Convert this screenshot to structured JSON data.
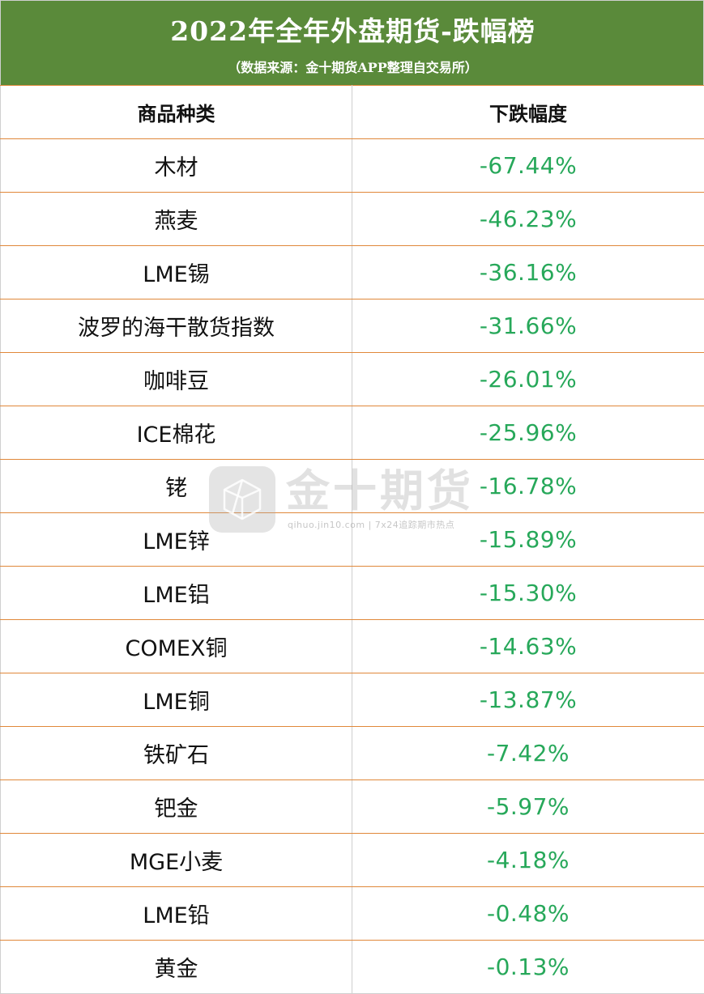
{
  "header": {
    "title": "2022年全年外盘期货-跌幅榜",
    "subtitle": "（数据来源：金十期货APP整理自交易所）",
    "bg_color": "#5a8a3a"
  },
  "table": {
    "columns": [
      "商品种类",
      "下跌幅度"
    ],
    "rows": [
      {
        "name": "木材",
        "change": "-67.44%"
      },
      {
        "name": "燕麦",
        "change": "-46.23%"
      },
      {
        "name": "LME锡",
        "change": "-36.16%"
      },
      {
        "name": "波罗的海干散货指数",
        "change": "-31.66%"
      },
      {
        "name": "咖啡豆",
        "change": "-26.01%"
      },
      {
        "name": "ICE棉花",
        "change": "-25.96%"
      },
      {
        "name": "铑",
        "change": "-16.78%"
      },
      {
        "name": "LME锌",
        "change": "-15.89%"
      },
      {
        "name": "LME铝",
        "change": "-15.30%"
      },
      {
        "name": "COMEX铜",
        "change": "-14.63%"
      },
      {
        "name": "LME铜",
        "change": "-13.87%"
      },
      {
        "name": "铁矿石",
        "change": "-7.42%"
      },
      {
        "name": "钯金",
        "change": "-5.97%"
      },
      {
        "name": "MGE小麦",
        "change": "-4.18%"
      },
      {
        "name": "LME铅",
        "change": "-0.48%"
      },
      {
        "name": "黄金",
        "change": "-0.13%"
      }
    ],
    "change_color": "#27a85a",
    "row_border_color": "#e0883a"
  },
  "watermark": {
    "text": "金十期货",
    "sub": "qihuo.jin10.com | 7x24追踪期市热点",
    "icon": "jin10-logo-icon"
  }
}
